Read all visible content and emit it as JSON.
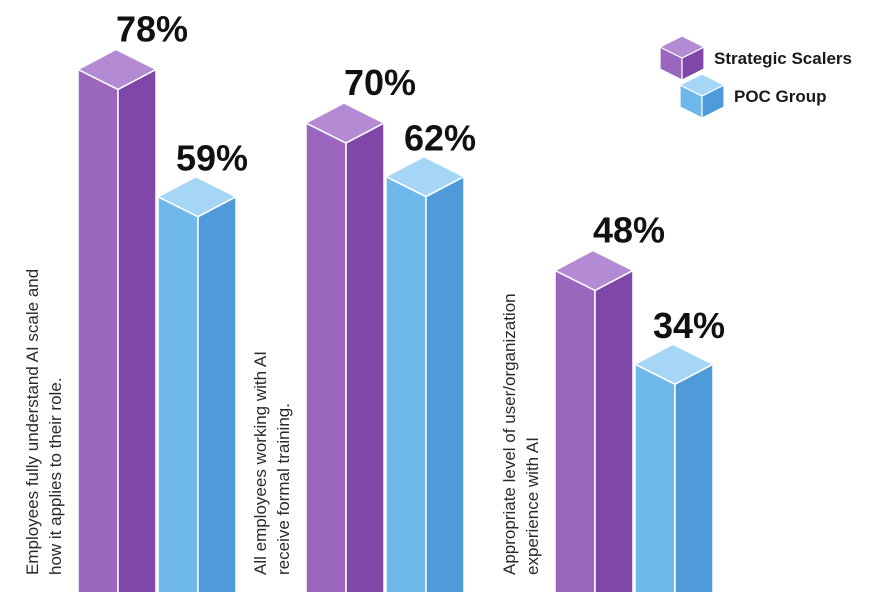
{
  "chart_data": {
    "type": "bar",
    "categories": [
      [
        "Employees fully understand AI scale and",
        "how it applies to their role."
      ],
      [
        "All employees working with AI",
        "receive formal training."
      ],
      [
        "Appropriate level of user/organization",
        "experience with AI"
      ]
    ],
    "series": [
      {
        "name": "Strategic Scalers",
        "values": [
          78,
          70,
          48
        ],
        "labels": [
          "78%",
          "70%",
          "48%"
        ]
      },
      {
        "name": "POC Group",
        "values": [
          59,
          62,
          34
        ],
        "labels": [
          "59%",
          "62%",
          "34%"
        ]
      }
    ],
    "ylim": [
      0,
      100
    ],
    "grid": false,
    "legend_position": "top-right"
  },
  "colors": {
    "strategic_front": "#9a66be",
    "strategic_side": "#7f48a8",
    "strategic_top": "#b58ad4",
    "poc_front": "#6fb8ec",
    "poc_side": "#4f9ad8",
    "poc_top": "#a6d6f6"
  }
}
